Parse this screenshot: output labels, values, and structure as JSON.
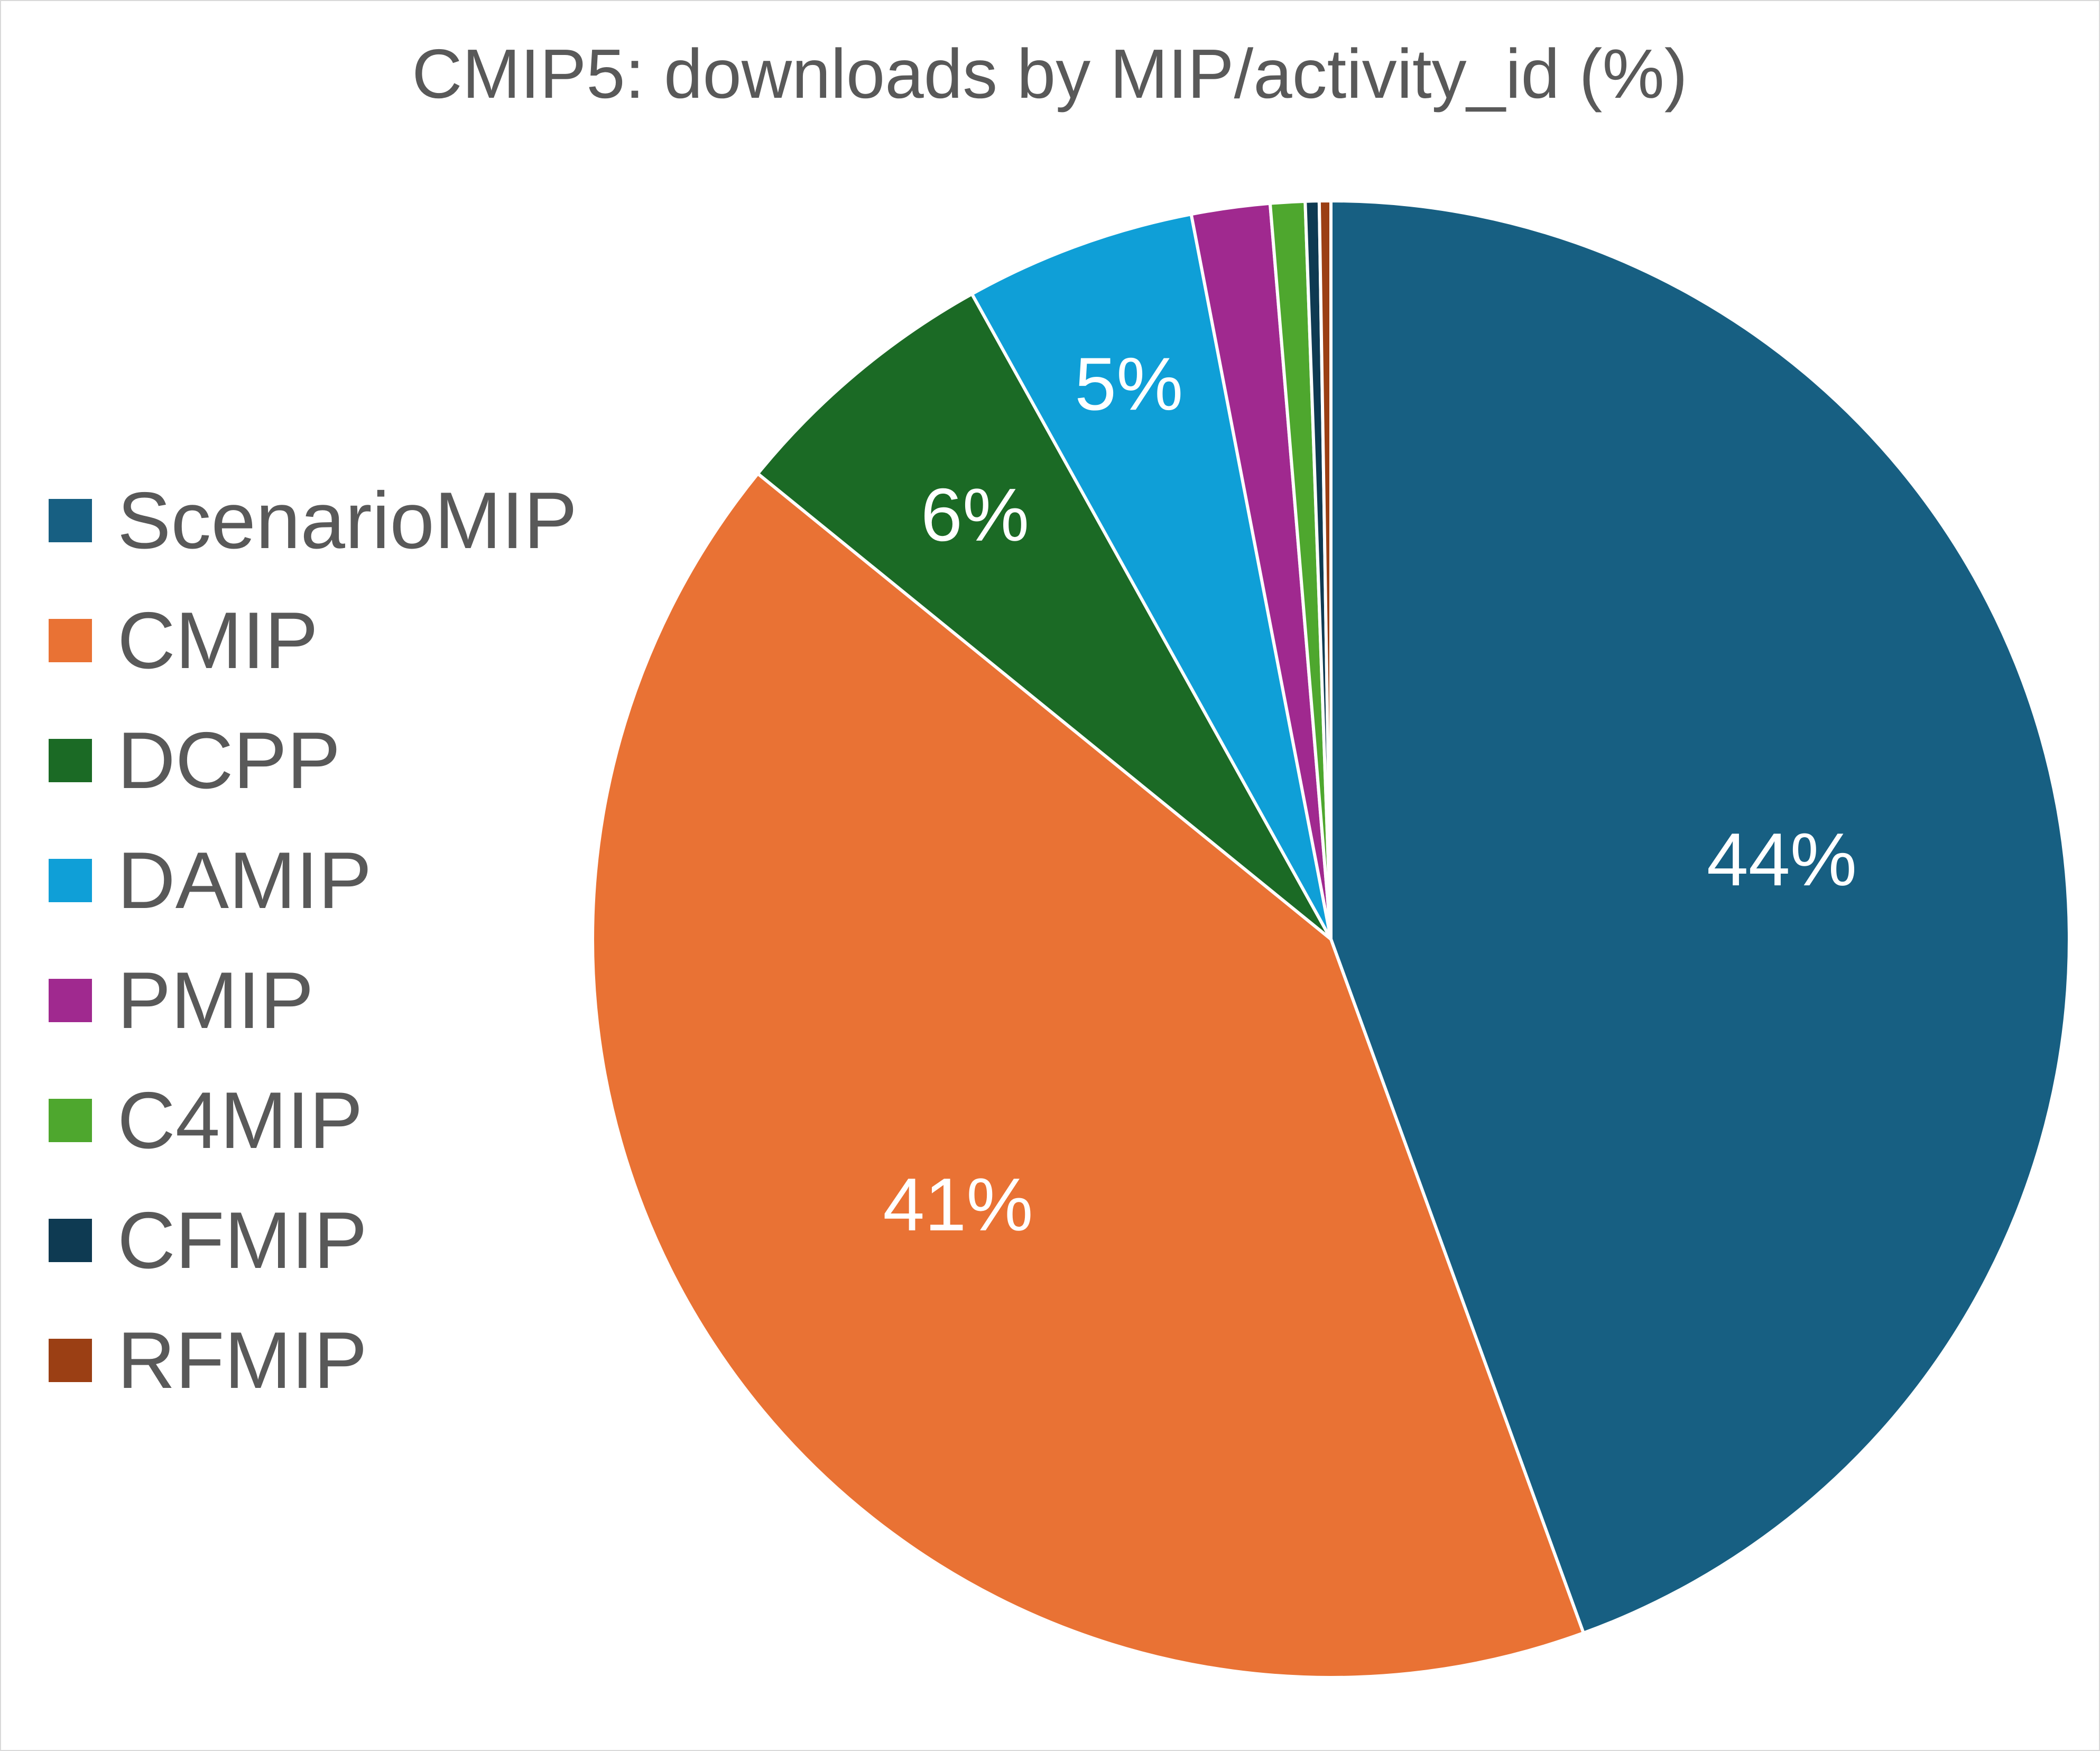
{
  "chart_data": {
    "type": "pie",
    "title": "CMIP5: downloads by MIP/activity_id (%)",
    "legend_position": "left",
    "slices": [
      {
        "label": "ScenarioMIP",
        "value": 44,
        "color": "#175f82",
        "data_label": "44%"
      },
      {
        "label": "CMIP",
        "value": 41,
        "color": "#e97234",
        "data_label": "41%"
      },
      {
        "label": "DCPP",
        "value": 6,
        "color": "#1b6a25",
        "data_label": "6%"
      },
      {
        "label": "DAMIP",
        "value": 5,
        "color": "#0f9fd7",
        "data_label": "5%"
      },
      {
        "label": "PMIP",
        "value": 1.7,
        "color": "#a0298f",
        "data_label": ""
      },
      {
        "label": "C4MIP",
        "value": 0.75,
        "color": "#4ea72e",
        "data_label": ""
      },
      {
        "label": "CFMIP",
        "value": 0.3,
        "color": "#0e3a52",
        "data_label": ""
      },
      {
        "label": "RFMIP",
        "value": 0.25,
        "color": "#9b3f14",
        "data_label": ""
      }
    ]
  }
}
